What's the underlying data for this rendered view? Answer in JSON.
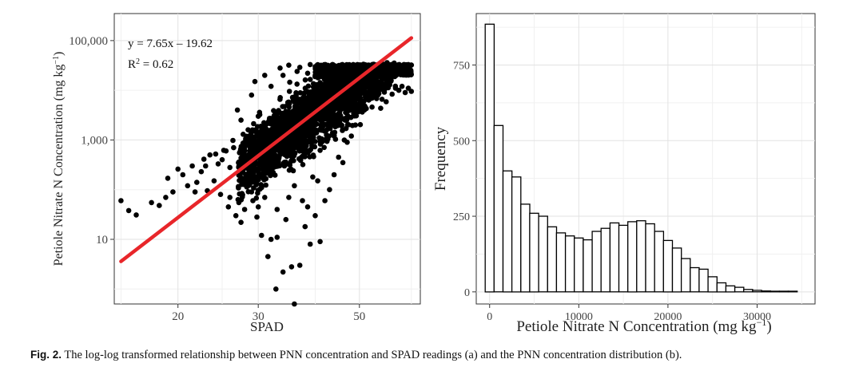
{
  "figure": {
    "caption_label": "Fig. 2.",
    "caption_text": "The log-log transformed relationship between PNN concentration and SPAD readings (a) and the PNN concentration distribution (b)."
  },
  "chart_data": [
    {
      "type": "scatter",
      "xlabel": "SPAD",
      "ylabel": "Petiole Nitrate N Concentration (mg kg⁻¹)",
      "x_scale": "log",
      "y_scale": "log",
      "xlim": [
        14.5,
        68
      ],
      "ylim": [
        0.5,
        350000
      ],
      "x_ticks": [
        20,
        30,
        50
      ],
      "x_tick_labels": [
        "20",
        "30",
        "50"
      ],
      "y_ticks": [
        10,
        1000,
        100000
      ],
      "y_tick_labels": [
        "10",
        "1,000",
        "100,000"
      ],
      "grid": true,
      "annotations": [
        "y = 7.65x – 19.62",
        "R² = 0.62"
      ],
      "fit_line": {
        "x": [
          15,
          65
        ],
        "y": [
          3.6,
          113000
        ],
        "color": "#e8262a"
      },
      "point_color": "#000000",
      "points": [
        [
          15.0,
          60
        ],
        [
          15.6,
          38
        ],
        [
          16.2,
          31
        ],
        [
          17.5,
          55
        ],
        [
          18.2,
          48
        ],
        [
          18.8,
          70
        ],
        [
          19.0,
          170
        ],
        [
          19.5,
          90
        ],
        [
          20.5,
          200
        ],
        [
          21.0,
          120
        ],
        [
          21.5,
          300
        ],
        [
          22.0,
          140
        ],
        [
          22.5,
          230
        ],
        [
          23.0,
          300
        ],
        [
          23.5,
          500
        ],
        [
          24.0,
          150
        ],
        [
          24.5,
          330
        ],
        [
          25.0,
          400
        ],
        [
          25.5,
          600
        ],
        [
          26.0,
          280
        ],
        [
          26.5,
          700
        ],
        [
          27.0,
          4000
        ],
        [
          27.5,
          2500
        ],
        [
          28.0,
          900
        ],
        [
          28.5,
          1600
        ],
        [
          29.0,
          8000
        ],
        [
          29.5,
          15000
        ],
        [
          30.0,
          3000
        ],
        [
          31.0,
          20000
        ],
        [
          32.0,
          12000
        ],
        [
          21.8,
          90
        ],
        [
          23.2,
          95
        ],
        [
          24.8,
          80
        ],
        [
          25.8,
          45
        ],
        [
          26.8,
          30
        ],
        [
          27.5,
          22
        ],
        [
          29.2,
          60
        ],
        [
          29.8,
          28
        ],
        [
          30.5,
          12
        ],
        [
          31.5,
          4.5
        ],
        [
          32.0,
          10
        ],
        [
          33.0,
          11
        ],
        [
          34.0,
          2.2
        ],
        [
          35.5,
          2.8
        ],
        [
          32.8,
          1.0
        ],
        [
          36.0,
          0.5
        ],
        [
          37.0,
          3.0
        ],
        [
          38.0,
          18
        ],
        [
          39.0,
          8
        ],
        [
          41.0,
          9
        ],
        [
          42.0,
          60
        ],
        [
          44.0,
          200
        ],
        [
          46.0,
          350
        ],
        [
          48.0,
          1200
        ],
        [
          38.5,
          45
        ],
        [
          40.0,
          30
        ],
        [
          43.0,
          100
        ],
        [
          45.0,
          450
        ],
        [
          47.0,
          900
        ],
        [
          49.0,
          2000
        ],
        [
          50.0,
          5000
        ],
        [
          52.0,
          9000
        ],
        [
          53.0,
          14000
        ],
        [
          55.0,
          11000
        ],
        [
          57.0,
          12500
        ],
        [
          60.0,
          11000
        ],
        [
          61.0,
          10000
        ],
        [
          62.0,
          12000
        ],
        [
          63.0,
          9000
        ],
        [
          64.0,
          11000
        ],
        [
          65.0,
          9500
        ],
        [
          58.0,
          13500
        ],
        [
          28.0,
          40
        ],
        [
          30.0,
          45
        ],
        [
          33.0,
          40
        ],
        [
          36.0,
          120
        ],
        [
          37.5,
          60
        ],
        [
          40.5,
          150
        ],
        [
          26.0,
          70
        ],
        [
          27.2,
          55
        ],
        [
          34.5,
          25
        ],
        [
          31.0,
          70
        ],
        [
          35.0,
          70
        ],
        [
          39.5,
          180
        ],
        [
          44.0,
          1200
        ],
        [
          46.5,
          2500
        ],
        [
          51.0,
          30000
        ],
        [
          53.0,
          25000
        ],
        [
          56.0,
          18000
        ],
        [
          59.0,
          20000
        ],
        [
          20.0,
          260
        ],
        [
          22.8,
          410
        ],
        [
          24.2,
          520
        ],
        [
          25.2,
          620
        ],
        [
          26.4,
          980
        ],
        [
          27.8,
          1300
        ],
        [
          33.5,
          28000
        ],
        [
          35.0,
          32000
        ],
        [
          37.0,
          29000
        ],
        [
          39.0,
          33000
        ],
        [
          41.0,
          31000
        ],
        [
          43.0,
          30000
        ],
        [
          45.0,
          28000
        ],
        [
          47.0,
          27000
        ],
        [
          49.0,
          26000
        ],
        [
          34.0,
          20000
        ],
        [
          36.5,
          24000
        ],
        [
          38.5,
          22000
        ]
      ],
      "dense_cloud": {
        "description": "dense core of overlapping points",
        "center_x": [
          27,
          58
        ],
        "trend": "follows fit line",
        "spread_decades": 1.2
      }
    },
    {
      "type": "bar",
      "subtype": "histogram",
      "xlabel": "Petiole Nitrate N Concentration (mg kg⁻¹)",
      "ylabel": "Frequency",
      "xlim": [
        -1500,
        36500
      ],
      "ylim": [
        -40,
        920
      ],
      "x_ticks": [
        0,
        10000,
        20000,
        30000
      ],
      "y_ticks": [
        0,
        250,
        500,
        750
      ],
      "bin_width": 1000,
      "bin_start": -500,
      "grid": true,
      "fill": "#ffffff",
      "stroke": "#000000",
      "values": [
        885,
        550,
        400,
        380,
        290,
        260,
        250,
        215,
        195,
        185,
        178,
        172,
        200,
        210,
        228,
        220,
        232,
        235,
        225,
        200,
        170,
        145,
        110,
        80,
        75,
        50,
        30,
        20,
        15,
        8,
        5,
        3,
        2,
        2,
        1
      ]
    }
  ]
}
